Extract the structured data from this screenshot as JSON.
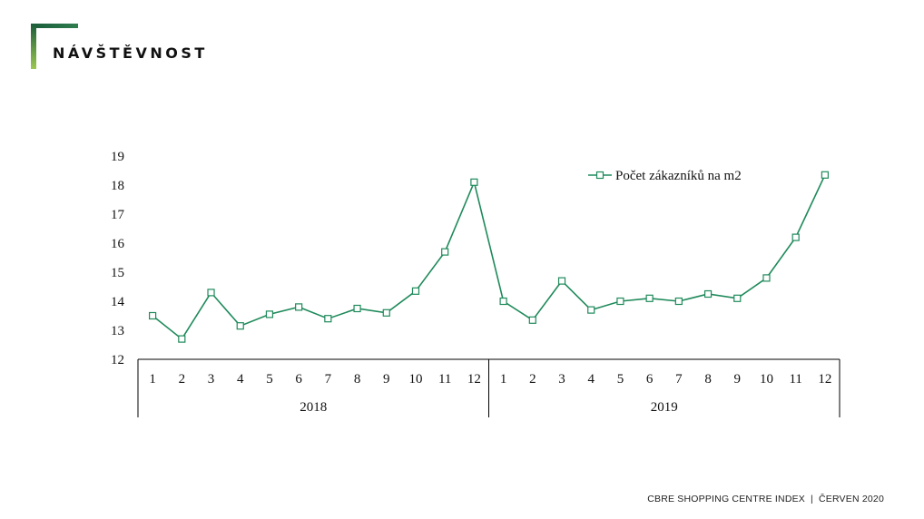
{
  "page": {
    "title": "NÁVŠTĚVNOST",
    "footer_left": "CBRE SHOPPING CENTRE INDEX",
    "footer_separator": "|",
    "footer_right": "ČERVEN 2020"
  },
  "colors": {
    "series": "#1f8a5b",
    "accent_dark": "#1a5c3a",
    "accent_light": "#9cc74f"
  },
  "chart_data": {
    "type": "line",
    "title": "",
    "ylim": [
      12,
      19
    ],
    "yticks": [
      12,
      13,
      14,
      15,
      16,
      17,
      18,
      19
    ],
    "grid": false,
    "legend_position": "top-right",
    "x_months": [
      "1",
      "2",
      "3",
      "4",
      "5",
      "6",
      "7",
      "8",
      "9",
      "10",
      "11",
      "12",
      "1",
      "2",
      "3",
      "4",
      "5",
      "6",
      "7",
      "8",
      "9",
      "10",
      "11",
      "12"
    ],
    "x_groups": [
      {
        "label": "2018",
        "count": 12
      },
      {
        "label": "2019",
        "count": 12
      }
    ],
    "series": [
      {
        "name": "Počet zákazníků na m2",
        "marker": "hollow-square",
        "values": [
          13.5,
          12.7,
          14.3,
          13.15,
          13.55,
          13.8,
          13.4,
          13.75,
          13.6,
          14.35,
          15.7,
          18.1,
          14.0,
          13.35,
          14.7,
          13.7,
          14.0,
          14.1,
          14.0,
          14.25,
          14.1,
          14.8,
          16.2,
          18.35
        ]
      }
    ]
  }
}
